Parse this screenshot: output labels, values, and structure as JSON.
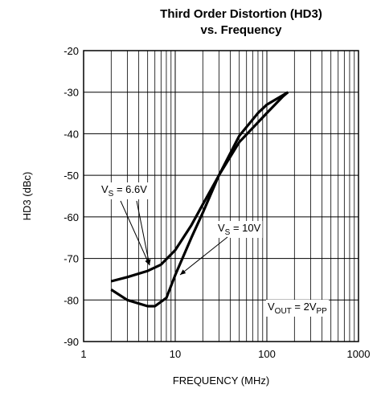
{
  "chart_data": {
    "type": "line",
    "title": [
      "Third Order Distortion (HD3)",
      "vs. Frequency"
    ],
    "x_label": "FREQUENCY (MHz)",
    "y_label": "HD3 (dBc)",
    "xlog": true,
    "xlim": [
      1,
      1000
    ],
    "xticks": [
      1,
      10,
      100,
      1000
    ],
    "ylim": [
      -90,
      -20
    ],
    "yticks": [
      -90,
      -80,
      -70,
      -60,
      -50,
      -40,
      -30,
      -20
    ],
    "grid": true,
    "series": [
      {
        "color": "#000000",
        "x": [
          2,
          3,
          5,
          7,
          10,
          15,
          20,
          30,
          50,
          100,
          150,
          170
        ],
        "values": [
          -75.5,
          -74.5,
          -73,
          -71.5,
          -68,
          -62,
          -57,
          -50,
          -42,
          -35,
          -31,
          -30
        ]
      },
      {
        "color": "#000000",
        "x": [
          2,
          3,
          5,
          6,
          8,
          10,
          15,
          20,
          30,
          50,
          80,
          100,
          170
        ],
        "values": [
          -77.5,
          -80,
          -81.5,
          -81.5,
          -79.5,
          -74,
          -65,
          -59,
          -50,
          -40.5,
          -35,
          -33,
          -30
        ]
      }
    ],
    "annotations": [
      [
        "V",
        "S",
        " = 6.6V"
      ],
      [
        "V",
        "S",
        " = 10V"
      ],
      [
        "V",
        "OUT",
        " = 2V",
        "PP"
      ]
    ]
  }
}
